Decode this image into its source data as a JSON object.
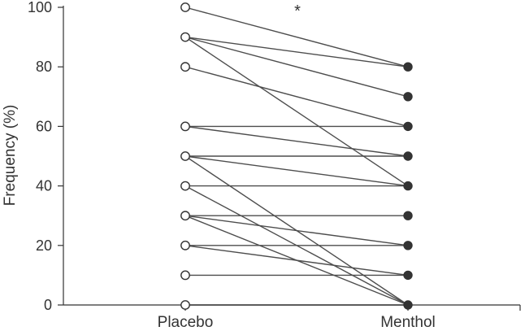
{
  "chart_data": {
    "type": "line",
    "title": "",
    "xlabel": "",
    "ylabel": "Frequency (%)",
    "categories": [
      "Placebo",
      "Menthol"
    ],
    "ylim": [
      0,
      100
    ],
    "yticks": [
      0,
      20,
      40,
      60,
      80,
      100
    ],
    "grid": false,
    "legend": "none",
    "annotations": [
      {
        "text": "*",
        "x": "between",
        "y": 100
      }
    ],
    "markers": {
      "Placebo": "open-circle",
      "Menthol": "filled-circle"
    },
    "series": [
      {
        "values": [
          100,
          80
        ]
      },
      {
        "values": [
          90,
          80
        ]
      },
      {
        "values": [
          90,
          70
        ]
      },
      {
        "values": [
          90,
          40
        ]
      },
      {
        "values": [
          80,
          60
        ]
      },
      {
        "values": [
          60,
          60
        ]
      },
      {
        "values": [
          60,
          50
        ]
      },
      {
        "values": [
          50,
          50
        ]
      },
      {
        "values": [
          50,
          40
        ]
      },
      {
        "values": [
          50,
          0
        ]
      },
      {
        "values": [
          40,
          40
        ]
      },
      {
        "values": [
          40,
          0
        ]
      },
      {
        "values": [
          30,
          30
        ]
      },
      {
        "values": [
          30,
          20
        ]
      },
      {
        "values": [
          30,
          0
        ]
      },
      {
        "values": [
          20,
          20
        ]
      },
      {
        "values": [
          20,
          10
        ]
      },
      {
        "values": [
          10,
          10
        ]
      },
      {
        "values": [
          0,
          0
        ]
      }
    ],
    "colors": {
      "line": "#4d4d4d",
      "marker": "#333333",
      "axis": "#333333",
      "text": "#333333"
    }
  }
}
